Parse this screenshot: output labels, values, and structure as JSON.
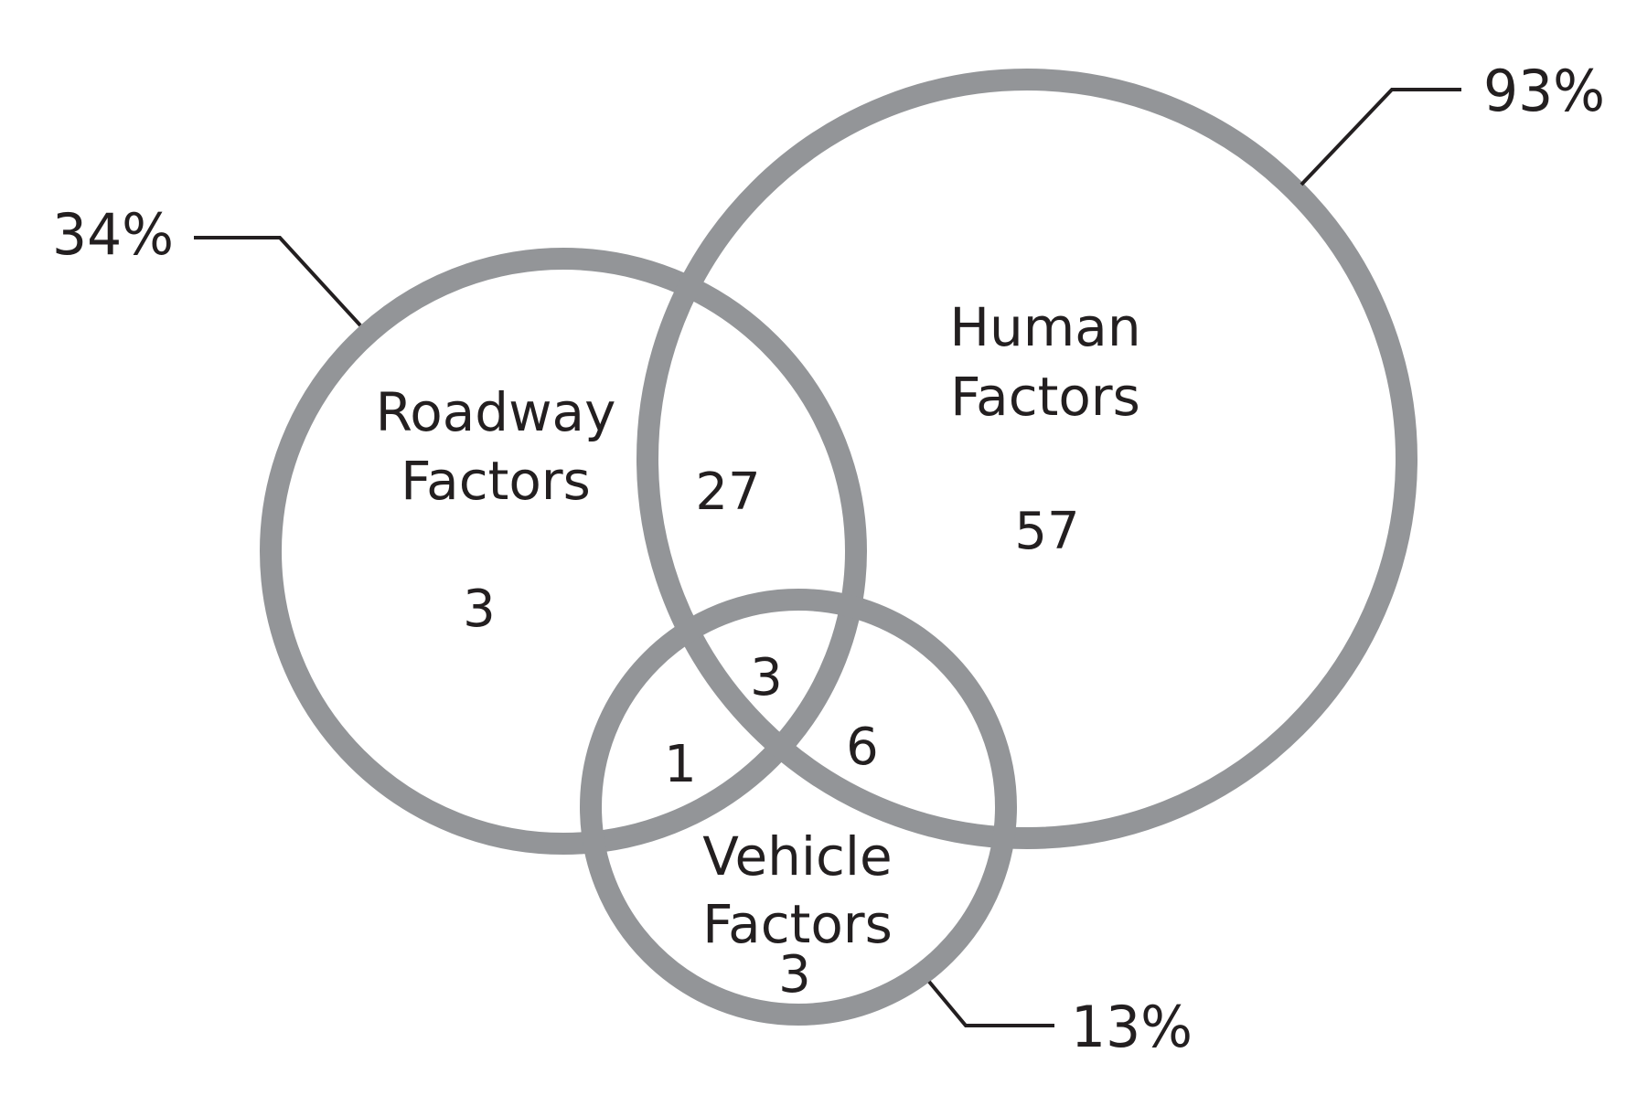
{
  "colors": {
    "circle_stroke": "#939598",
    "text": "#231f20",
    "leader": "#231f20",
    "background": "#ffffff"
  },
  "sets": {
    "roadway": {
      "label_line1": "Roadway",
      "label_line2": "Factors",
      "percent": "34%"
    },
    "human": {
      "label_line1": "Human",
      "label_line2": "Factors",
      "percent": "93%"
    },
    "vehicle": {
      "label_line1": "Vehicle",
      "label_line2": "Factors",
      "percent": "13%"
    }
  },
  "regions": {
    "roadway_only": "3",
    "roadway_human": "27",
    "human_only": "57",
    "all_three": "3",
    "roadway_vehicle": "1",
    "human_vehicle": "6",
    "vehicle_only": "3"
  }
}
